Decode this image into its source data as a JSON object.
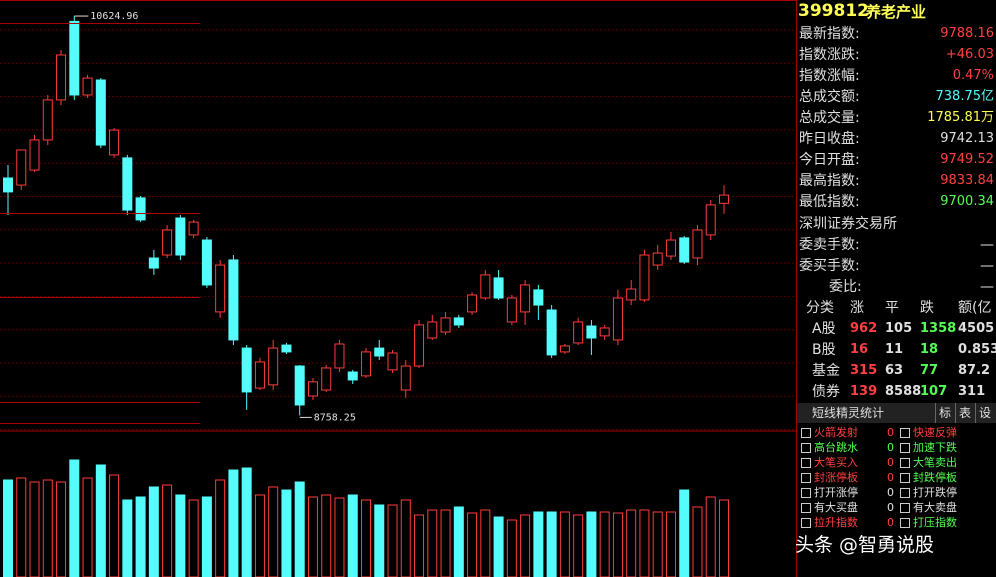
{
  "chart_data": {
    "type": "candlestick",
    "open": [
      9868,
      9835,
      9905,
      10046,
      10233,
      10600,
      10256,
      10326,
      9976,
      9962,
      9775,
      9494,
      9508,
      9681,
      9602,
      9578,
      9242,
      9485,
      9073,
      8886,
      8901,
      9087,
      8989,
      8849,
      8877,
      8980,
      8961,
      8943,
      9073,
      8971,
      8877,
      8989,
      9120,
      9148,
      9214,
      9242,
      9307,
      9401,
      9195,
      9242,
      9345,
      9251,
      9055,
      9097,
      9176,
      9130,
      9111,
      9298,
      9298,
      9461,
      9503,
      9588,
      9494,
      9602,
      9749.52
    ],
    "high": [
      9929,
      9999,
      10069,
      10256,
      10466,
      10624.96,
      10350,
      10335,
      10102,
      9976,
      9784,
      9532,
      9648,
      9695,
      9672,
      9592,
      9485,
      9508,
      9087,
      9027,
      9111,
      9097,
      8994,
      8933,
      8994,
      9111,
      8971,
      9073,
      9111,
      9064,
      9017,
      9204,
      9228,
      9242,
      9228,
      9334,
      9438,
      9438,
      9321,
      9391,
      9368,
      9274,
      9092,
      9214,
      9204,
      9181,
      9345,
      9391,
      9532,
      9555,
      9616,
      9597,
      9648,
      9765,
      9833.84
    ],
    "low": [
      9695,
      9812,
      9896,
      10022,
      10209,
      10233,
      10242,
      10008,
      9962,
      9695,
      9662,
      9415,
      9494,
      9485,
      9588,
      9354,
      9214,
      9087,
      8784,
      8877,
      8877,
      9045,
      8758.25,
      8830,
      8868,
      8961,
      8905,
      8933,
      9017,
      8957,
      8840,
      8980,
      9111,
      9134,
      9167,
      9228,
      9298,
      9298,
      9181,
      9181,
      9204,
      9027,
      9045,
      9087,
      9041,
      9111,
      9087,
      9274,
      9288,
      9438,
      9485,
      9466,
      9461,
      9578,
      9700.34
    ],
    "close": [
      9803,
      9999,
      10046,
      10233,
      10443,
      10256,
      10335,
      10022,
      10092,
      9718,
      9672,
      9447,
      9625,
      9508,
      9662,
      9368,
      9461,
      9111,
      8868,
      9008,
      9073,
      9055,
      8807,
      8915,
      8980,
      9092,
      8924,
      9055,
      9036,
      9050,
      8989,
      9181,
      9195,
      9214,
      9181,
      9321,
      9415,
      9307,
      9307,
      9368,
      9274,
      9041,
      9083,
      9195,
      9120,
      9167,
      9307,
      9349,
      9508,
      9517,
      9578,
      9475,
      9625,
      9742,
      9788.16
    ],
    "volume": [
      97,
      99,
      95,
      97,
      95,
      117,
      99,
      112,
      102,
      77,
      80,
      90,
      92,
      82,
      77,
      80,
      97,
      107,
      109,
      82,
      90,
      87,
      95,
      80,
      82,
      79,
      82,
      77,
      72,
      72,
      77,
      62,
      67,
      67,
      70,
      64,
      67,
      60,
      57,
      62,
      65,
      65,
      65,
      62,
      65,
      65,
      64,
      67,
      67,
      65,
      65,
      87,
      70,
      80,
      77
    ],
    "ylim": [
      8690,
      10700
    ],
    "volume_lim": [
      0,
      145
    ],
    "up_color": "#ff3c3c",
    "down_color": "#54fcfc"
  },
  "panel": {
    "code": "399812",
    "name": "养老产业",
    "quote": [
      {
        "label": "最新指数:",
        "value": "9788.16",
        "color": "#ff4040"
      },
      {
        "label": "指数涨跌:",
        "value": "+46.03",
        "color": "#ff4040"
      },
      {
        "label": "指数涨幅:",
        "value": "0.47%",
        "color": "#ff4040"
      },
      {
        "label": "总成交额:",
        "value": "738.75亿",
        "color": "#54fcfc"
      },
      {
        "label": "总成交量:",
        "value": "1785.81万",
        "color": "#ffff54"
      },
      {
        "label": "昨日收盘:",
        "value": "9742.13",
        "color": "#e0e0e0"
      },
      {
        "label": "今日开盘:",
        "value": "9749.52",
        "color": "#ff4040"
      },
      {
        "label": "最高指数:",
        "value": "9833.84",
        "color": "#ff4040"
      },
      {
        "label": "最低指数:",
        "value": "9700.34",
        "color": "#54ff54"
      }
    ],
    "exchange": "深圳证券交易所",
    "orders": [
      {
        "label": "委卖手数:",
        "value": "—"
      },
      {
        "label": "委买手数:",
        "value": "—"
      },
      {
        "label": "委比:",
        "value": "—"
      }
    ],
    "table": {
      "header": [
        "分类",
        "涨",
        "平",
        "跌",
        "额(亿"
      ],
      "rows": [
        [
          "A股",
          "962",
          "105",
          "1358",
          "4505"
        ],
        [
          "B股",
          "16",
          "11",
          "18",
          "0.853"
        ],
        [
          "基金",
          "315",
          "63",
          "77",
          "87.2"
        ],
        [
          "债券",
          "139",
          "8588",
          "107",
          "311"
        ]
      ]
    },
    "spirit": {
      "title": "短线精灵统计",
      "buttons": [
        "标",
        "表",
        "设"
      ],
      "left": [
        {
          "label": "火箭发射",
          "count": "0",
          "color": "#ff4040"
        },
        {
          "label": "高台跳水",
          "count": "0",
          "color": "#54ff54"
        },
        {
          "label": "大笔买入",
          "count": "0",
          "color": "#ff4040"
        },
        {
          "label": "封涨停板",
          "count": "0",
          "color": "#ff4040"
        },
        {
          "label": "打开涨停",
          "count": "0",
          "color": "#e0e0e0"
        },
        {
          "label": "有大买盘",
          "count": "0",
          "color": "#e0e0e0"
        },
        {
          "label": "拉升指数",
          "count": "0",
          "color": "#ff4040"
        }
      ],
      "right": [
        {
          "label": "快速反弹",
          "color": "#ff4040"
        },
        {
          "label": "加速下跌",
          "color": "#54ff54"
        },
        {
          "label": "大笔卖出",
          "color": "#54ff54"
        },
        {
          "label": "封跌停板",
          "color": "#54ff54"
        },
        {
          "label": "打开跌停",
          "color": "#e0e0e0"
        },
        {
          "label": "有大卖盘",
          "color": "#e0e0e0"
        },
        {
          "label": "打压指数",
          "color": "#54ff54"
        }
      ]
    },
    "watermark": "头条 @智勇说股"
  }
}
